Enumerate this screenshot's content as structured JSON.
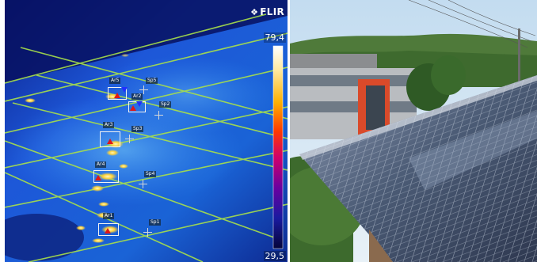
{
  "thermal_view": {
    "logo": "FLIR",
    "scale_max": "79,4",
    "scale_min": "29,5",
    "areas": [
      "Ar5",
      "Ar2",
      "Ar3",
      "Ar4",
      "Ar1"
    ],
    "spots": [
      "Sp5",
      "Sp2",
      "Sp3",
      "Sp4",
      "Sp1"
    ]
  },
  "photo_view": {
    "subject": "rooftop solar panel array next to an office building"
  },
  "colors": {
    "thermal_background": "#1a4fd0",
    "grid_lines": "#a8e04a",
    "hotspot": "#ffd23a",
    "sky": "#cfe3f3",
    "panel": "#4a5a74"
  }
}
